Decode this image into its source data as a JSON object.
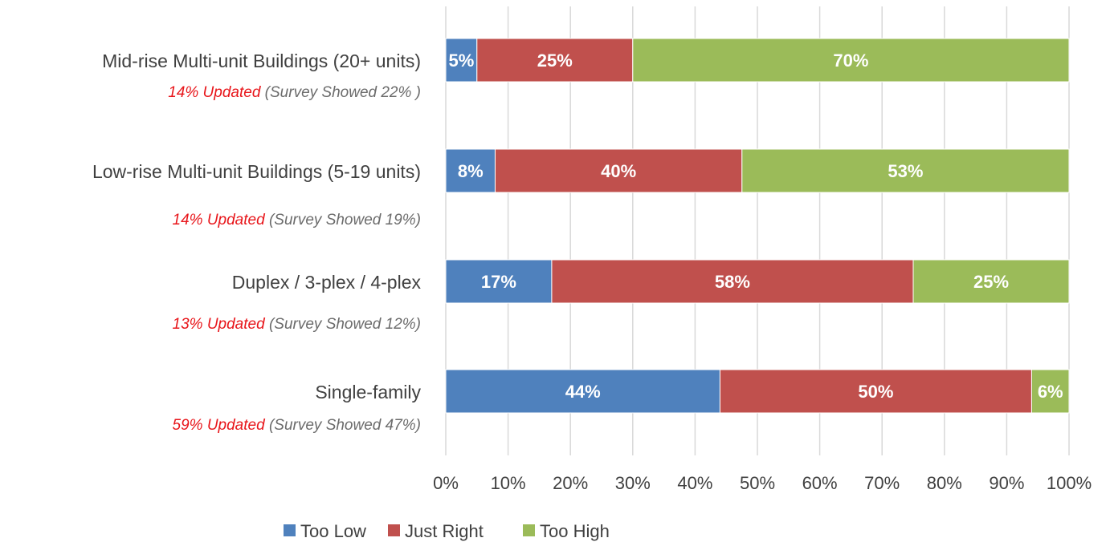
{
  "colors": {
    "too_low": "#4f81bd",
    "just_right": "#c0504d",
    "too_high": "#9bbb59",
    "note_red": "#e8161b"
  },
  "chart_data": {
    "type": "bar",
    "orientation": "horizontal",
    "stacked": true,
    "title": "",
    "xlabel": "",
    "ylabel": "",
    "xlim": [
      0,
      100
    ],
    "x_ticks": [
      "0%",
      "10%",
      "20%",
      "30%",
      "40%",
      "50%",
      "60%",
      "70%",
      "80%",
      "90%",
      "100%"
    ],
    "grid": true,
    "legend_position": "bottom",
    "categories": [
      "Mid-rise Multi-unit Buildings (20+ units)",
      "Low-rise Multi-unit Buildings (5-19 units)",
      "Duplex / 3-plex / 4-plex",
      "Single-family"
    ],
    "notes": [
      {
        "updated": "14% Updated",
        "survey": " (Survey Showed 22% )"
      },
      {
        "updated": "14% Updated",
        "survey": " (Survey Showed 19%)"
      },
      {
        "updated": "13% Updated",
        "survey": " (Survey Showed 12%)"
      },
      {
        "updated": "59% Updated",
        "survey": " (Survey Showed 47%)"
      }
    ],
    "series": [
      {
        "name": "Too Low",
        "values": [
          5,
          8,
          17,
          44
        ],
        "labels": [
          "5%",
          "8%",
          "17%",
          "44%"
        ]
      },
      {
        "name": "Just Right",
        "values": [
          25,
          40,
          58,
          50
        ],
        "labels": [
          "25%",
          "40%",
          "58%",
          "50%"
        ]
      },
      {
        "name": "Too High",
        "values": [
          70,
          53,
          25,
          6
        ],
        "labels": [
          "70%",
          "53%",
          "25%",
          "6%"
        ]
      }
    ]
  }
}
